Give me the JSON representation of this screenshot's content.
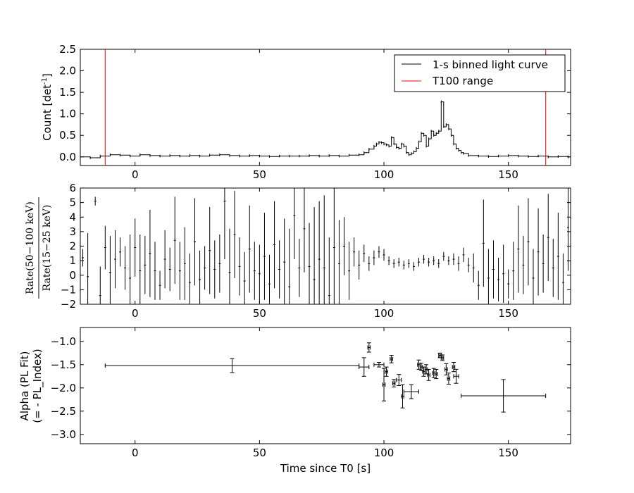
{
  "chart_data": [
    {
      "type": "line",
      "panel": "light-curve",
      "ylabel_main": "Count [det",
      "ylabel_sup": "-1",
      "ylabel_close": "]",
      "xlim": [
        -22,
        175
      ],
      "ylim": [
        -0.2,
        2.5
      ],
      "x_ticks": [
        "0",
        "50",
        "100",
        "150"
      ],
      "x_tick_values": [
        0,
        50,
        100,
        150
      ],
      "y_ticks": [
        "0.0",
        "0.5",
        "1.0",
        "1.5",
        "2.0",
        "2.5"
      ],
      "y_tick_values": [
        0.0,
        0.5,
        1.0,
        1.5,
        2.0,
        2.5
      ],
      "legend": {
        "placement": "top-right",
        "entries": [
          {
            "label": "1-s binned light curve",
            "color": "#000000"
          },
          {
            "label": "T100 range",
            "color": "#ff0000"
          }
        ]
      },
      "t100_range": [
        -12,
        165
      ],
      "series": [
        {
          "name": "1-s binned light curve",
          "color": "#000000",
          "x": [
            -22,
            -18,
            -14,
            -10,
            -6,
            -2,
            2,
            6,
            10,
            14,
            18,
            22,
            26,
            30,
            34,
            38,
            42,
            46,
            50,
            54,
            58,
            62,
            66,
            70,
            74,
            78,
            82,
            86,
            90,
            92,
            94,
            96,
            97,
            98,
            99,
            100,
            101,
            102,
            103,
            104,
            105,
            106,
            107,
            108,
            109,
            110,
            111,
            112,
            113,
            114,
            115,
            116,
            117,
            118,
            119,
            120,
            121,
            122,
            123,
            124,
            125,
            126,
            127,
            128,
            129,
            130,
            131,
            132,
            134,
            138,
            142,
            146,
            150,
            154,
            158,
            162,
            166,
            170,
            174
          ],
          "y": [
            0.0,
            -0.02,
            0.02,
            0.05,
            0.04,
            0.02,
            0.05,
            0.03,
            0.02,
            0.03,
            0.02,
            0.03,
            0.02,
            0.04,
            0.05,
            0.03,
            0.02,
            0.03,
            0.02,
            0.01,
            0.02,
            0.02,
            0.02,
            0.03,
            0.02,
            0.03,
            0.02,
            0.04,
            0.05,
            0.1,
            0.18,
            0.25,
            0.3,
            0.34,
            0.33,
            0.3,
            0.28,
            0.25,
            0.45,
            0.3,
            0.22,
            0.2,
            0.3,
            0.25,
            0.1,
            0.05,
            0.08,
            0.12,
            0.2,
            0.35,
            0.55,
            0.5,
            0.25,
            0.42,
            0.6,
            0.5,
            0.55,
            0.6,
            1.28,
            0.7,
            0.75,
            0.65,
            0.5,
            0.3,
            0.2,
            0.15,
            0.1,
            0.08,
            0.03,
            0.02,
            0.01,
            0.02,
            0.03,
            0.02,
            0.01,
            0.02,
            0.0,
            0.01,
            0.0
          ]
        }
      ]
    },
    {
      "type": "scatter",
      "panel": "hardness-ratio",
      "ylabel_num": "Rate(50−100 keV)",
      "ylabel_den": "Rate(15−25 keV)",
      "xlim": [
        -22,
        175
      ],
      "ylim": [
        -2,
        6
      ],
      "x_ticks": [
        "0",
        "50",
        "100",
        "150"
      ],
      "x_tick_values": [
        0,
        50,
        100,
        150
      ],
      "y_ticks": [
        "−2",
        "−1",
        "0",
        "1",
        "2",
        "3",
        "4",
        "5",
        "6"
      ],
      "y_tick_values": [
        -2,
        -1,
        0,
        1,
        2,
        3,
        4,
        5,
        6
      ],
      "series": [
        {
          "name": "",
          "color": "#000000",
          "x": [
            -21,
            -19,
            -16,
            -14,
            -12,
            -10,
            -8,
            -6,
            -4,
            -2,
            0,
            2,
            4,
            6,
            8,
            10,
            12,
            14,
            16,
            18,
            20,
            22,
            24,
            26,
            28,
            30,
            32,
            34,
            36,
            38,
            40,
            42,
            44,
            46,
            48,
            50,
            52,
            54,
            56,
            58,
            60,
            62,
            64,
            66,
            68,
            70,
            72,
            74,
            76,
            78,
            80,
            82,
            84,
            86,
            88,
            90,
            92,
            94,
            96,
            98,
            100,
            102,
            104,
            106,
            108,
            110,
            112,
            114,
            116,
            118,
            120,
            122,
            124,
            126,
            128,
            130,
            132,
            134,
            136,
            138,
            140,
            142,
            144,
            146,
            148,
            150,
            152,
            154,
            156,
            158,
            160,
            162,
            164,
            166,
            168,
            170,
            172,
            174
          ],
          "y": [
            1.2,
            -0.1,
            5.1,
            -1.4,
            1.9,
            0.2,
            1.1,
            1.6,
            0.5,
            -0.2,
            1.9,
            0.3,
            0.7,
            1.5,
            0.3,
            -0.7,
            1.1,
            0.4,
            2.4,
            0.3,
            0.8,
            -0.5,
            2.3,
            -0.3,
            0.5,
            1.7,
            0.4,
            0.8,
            5.1,
            0.2,
            2.8,
            0.6,
            -0.4,
            1.8,
            0.3,
            0.1,
            1.3,
            -0.6,
            2.1,
            0.4,
            0.9,
            -0.8,
            4.1,
            0.5,
            3.2,
            0.6,
            -0.3,
            1.1,
            0.5,
            -1.4,
            1.9,
            0.8,
            2.0,
            0.3,
            1.6,
            0.7,
            1.5,
            0.8,
            1.2,
            1.6,
            1.4,
            1.0,
            0.8,
            0.9,
            0.7,
            0.8,
            0.6,
            0.9,
            1.1,
            0.9,
            1.0,
            0.8,
            1.3,
            1.0,
            1.1,
            0.8,
            1.4,
            0.7,
            0.5,
            -0.7,
            2.2,
            -0.2,
            0.4,
            -0.3,
            0.1,
            -0.6,
            0.3,
            1.8,
            0.7,
            2.3,
            -0.2,
            1.6,
            0.8,
            2.6,
            0.5,
            1.3,
            -0.5,
            3.3
          ],
          "err": [
            0.6,
            3,
            0.3,
            2,
            1.5,
            2.5,
            2,
            1,
            1.5,
            3,
            2,
            2.5,
            2,
            3,
            2,
            1,
            2,
            1.5,
            3,
            2,
            2.5,
            2,
            3,
            2,
            1.5,
            3,
            2,
            2,
            4,
            3,
            3,
            2,
            2,
            3,
            2,
            2,
            3,
            2,
            3,
            2,
            3,
            4,
            3,
            2,
            3,
            3,
            5,
            4,
            5,
            4,
            5,
            3,
            2,
            2,
            1,
            1,
            0.6,
            0.5,
            0.5,
            0.4,
            0.4,
            0.3,
            0.3,
            0.3,
            0.3,
            0.3,
            0.3,
            0.3,
            0.3,
            0.3,
            0.3,
            0.3,
            0.3,
            0.3,
            0.4,
            0.5,
            0.5,
            0.5,
            1,
            1,
            3,
            2,
            2,
            1.5,
            2,
            1,
            2,
            3,
            2,
            3,
            2,
            3,
            2,
            3,
            2,
            3,
            2,
            3
          ]
        }
      ]
    },
    {
      "type": "scatter",
      "panel": "alpha",
      "ylabel_line1": "Alpha (PL Fit)",
      "ylabel_line2": "(= - PL_Index)",
      "xlabel": "Time since T0 [s]",
      "xlim": [
        -22,
        175
      ],
      "ylim": [
        -3.2,
        -0.7
      ],
      "x_ticks": [
        "0",
        "50",
        "100",
        "150"
      ],
      "x_tick_values": [
        0,
        50,
        100,
        150
      ],
      "y_ticks": [
        "−3.0",
        "−2.5",
        "−2.0",
        "−1.5",
        "−1.0"
      ],
      "y_tick_values": [
        -3.0,
        -2.5,
        -2.0,
        -1.5,
        -1.0
      ],
      "series": [
        {
          "name": "",
          "color": "#000000",
          "x": [
            39,
            92,
            94,
            98,
            100,
            101,
            103,
            104,
            106,
            107.5,
            111,
            114,
            115,
            116,
            117,
            118,
            120,
            121,
            122.5,
            123.5,
            125,
            126,
            128,
            129,
            148
          ],
          "xerr_lo": [
            51,
            2,
            0.5,
            2,
            0.5,
            0.5,
            0.5,
            0.5,
            1,
            0.5,
            3,
            0.5,
            0.5,
            0.5,
            0.5,
            0.5,
            0.5,
            0.5,
            0.5,
            0.5,
            0.5,
            0.5,
            0.5,
            1,
            17
          ],
          "xerr_hi": [
            51,
            2,
            0.5,
            2,
            0.5,
            0.5,
            0.5,
            0.5,
            1,
            0.5,
            3,
            0.5,
            0.5,
            0.5,
            0.5,
            0.5,
            0.5,
            0.5,
            0.5,
            0.5,
            0.5,
            0.5,
            0.5,
            1,
            17
          ],
          "y": [
            -1.52,
            -1.55,
            -1.13,
            -1.5,
            -1.93,
            -1.65,
            -1.38,
            -1.9,
            -1.83,
            -2.18,
            -2.08,
            -1.5,
            -1.55,
            -1.65,
            -1.6,
            -1.72,
            -1.68,
            -1.7,
            -1.3,
            -1.35,
            -1.6,
            -1.8,
            -1.55,
            -1.75,
            -2.17
          ],
          "yerr": [
            0.15,
            0.2,
            0.1,
            0.05,
            0.35,
            0.1,
            0.08,
            0.08,
            0.12,
            0.25,
            0.15,
            0.1,
            0.08,
            0.1,
            0.1,
            0.12,
            0.1,
            0.1,
            0.05,
            0.06,
            0.12,
            0.12,
            0.1,
            0.15,
            0.35
          ]
        }
      ]
    }
  ]
}
